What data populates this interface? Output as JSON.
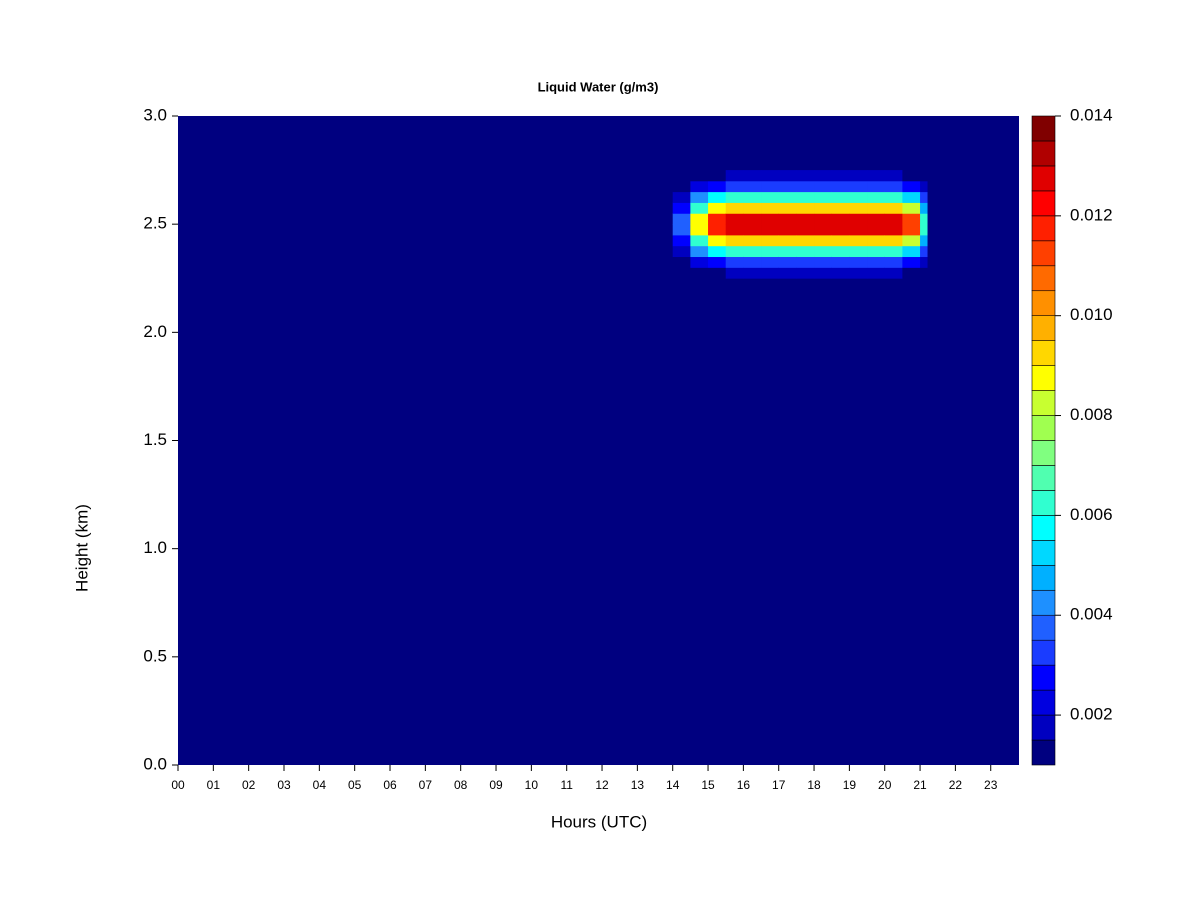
{
  "chart_data": {
    "type": "heatmap",
    "title": "Liquid Water (g/m3)",
    "xlabel": "Hours (UTC)",
    "ylabel": "Height (km)",
    "xlim": [
      0,
      23.8
    ],
    "ylim": [
      0,
      3
    ],
    "xticks": [
      {
        "value": 0,
        "label": "00"
      },
      {
        "value": 1,
        "label": "01"
      },
      {
        "value": 2,
        "label": "02"
      },
      {
        "value": 3,
        "label": "03"
      },
      {
        "value": 4,
        "label": "04"
      },
      {
        "value": 5,
        "label": "05"
      },
      {
        "value": 6,
        "label": "06"
      },
      {
        "value": 7,
        "label": "07"
      },
      {
        "value": 8,
        "label": "08"
      },
      {
        "value": 9,
        "label": "09"
      },
      10,
      11,
      12,
      13,
      14,
      15,
      16,
      17,
      18,
      19,
      20,
      21,
      22,
      23
    ],
    "yticks": [
      {
        "value": 0,
        "label": "0.0"
      },
      0.5,
      {
        "value": 1,
        "label": "1.0"
      },
      1.5,
      {
        "value": 2,
        "label": "2.0"
      },
      2.5,
      {
        "value": 3,
        "label": "3.0"
      }
    ],
    "x": [
      14,
      14.5,
      15,
      15.5,
      16,
      16.5,
      17,
      17.5,
      18,
      18.5,
      19,
      19.5,
      20,
      20.5,
      21,
      21.2
    ],
    "y": [
      2.25,
      2.3,
      2.35,
      2.4,
      2.45,
      2.5,
      2.55,
      2.6,
      2.65,
      2.7,
      2.75
    ],
    "z": [
      [
        0.0005,
        0.0009,
        0.0018,
        0.0027,
        0.0038,
        0.0038,
        0.0027,
        0.0018,
        0.0009,
        0.0005
      ],
      [
        0.0011,
        0.0021,
        0.0042,
        0.0063,
        0.0088,
        0.0088,
        0.0063,
        0.0042,
        0.0021,
        0.0011
      ],
      [
        0.0014,
        0.0029,
        0.0057,
        0.0086,
        0.0119,
        0.0119,
        0.0086,
        0.0057,
        0.0029,
        0.0014
      ],
      [
        0.0015,
        0.003,
        0.006,
        0.009,
        0.0125,
        0.0125,
        0.009,
        0.006,
        0.003,
        0.0015
      ],
      [
        0.0015,
        0.003,
        0.006,
        0.009,
        0.0125,
        0.0125,
        0.009,
        0.006,
        0.003,
        0.0015
      ],
      [
        0.0015,
        0.003,
        0.006,
        0.009,
        0.0125,
        0.0125,
        0.009,
        0.006,
        0.003,
        0.0015
      ],
      [
        0.0015,
        0.003,
        0.006,
        0.009,
        0.0125,
        0.0125,
        0.009,
        0.006,
        0.003,
        0.0015
      ],
      [
        0.0015,
        0.003,
        0.006,
        0.009,
        0.0125,
        0.0125,
        0.009,
        0.006,
        0.003,
        0.0015
      ],
      [
        0.0015,
        0.003,
        0.006,
        0.009,
        0.0125,
        0.0125,
        0.009,
        0.006,
        0.003,
        0.0015
      ],
      [
        0.0015,
        0.003,
        0.006,
        0.009,
        0.0125,
        0.0125,
        0.009,
        0.006,
        0.003,
        0.0015
      ],
      [
        0.0015,
        0.003,
        0.006,
        0.009,
        0.0125,
        0.0125,
        0.009,
        0.006,
        0.003,
        0.0015
      ],
      [
        0.0015,
        0.003,
        0.006,
        0.009,
        0.0125,
        0.0125,
        0.009,
        0.006,
        0.003,
        0.0015
      ],
      [
        0.0015,
        0.003,
        0.006,
        0.009,
        0.0125,
        0.0125,
        0.009,
        0.006,
        0.003,
        0.0015
      ],
      [
        0.0014,
        0.0027,
        0.0054,
        0.0081,
        0.0113,
        0.0113,
        0.0081,
        0.0054,
        0.0027,
        0.0014
      ],
      [
        0.0008,
        0.0015,
        0.003,
        0.0045,
        0.0063,
        0.0063,
        0.0045,
        0.003,
        0.0015,
        0.0008
      ]
    ],
    "colorbar": {
      "levels": [
        0.001,
        0.0015,
        0.002,
        0.0025,
        0.003,
        0.0035,
        0.004,
        0.0045,
        0.005,
        0.0055,
        0.006,
        0.0065,
        0.007,
        0.0075,
        0.008,
        0.0085,
        0.009,
        0.0095,
        0.01,
        0.0105,
        0.011,
        0.0115,
        0.012,
        0.0125,
        0.013,
        0.0135,
        0.014
      ],
      "colors": [
        "#000080",
        "#0000c0",
        "#0000e0",
        "#0000ff",
        "#1a3cff",
        "#2060ff",
        "#1e90ff",
        "#00b0ff",
        "#00d8ff",
        "#00ffff",
        "#30ffd0",
        "#50ffb0",
        "#80ff80",
        "#a0ff50",
        "#c8ff30",
        "#ffff00",
        "#ffd700",
        "#ffb000",
        "#ff9000",
        "#ff6a00",
        "#ff4000",
        "#ff2000",
        "#ff0000",
        "#e00000",
        "#b00000",
        "#800000"
      ],
      "ticks": [
        0.002,
        0.004,
        0.006,
        0.008,
        {
          "value": 0.01,
          "label": "0.010"
        },
        0.012,
        0.014
      ]
    }
  }
}
